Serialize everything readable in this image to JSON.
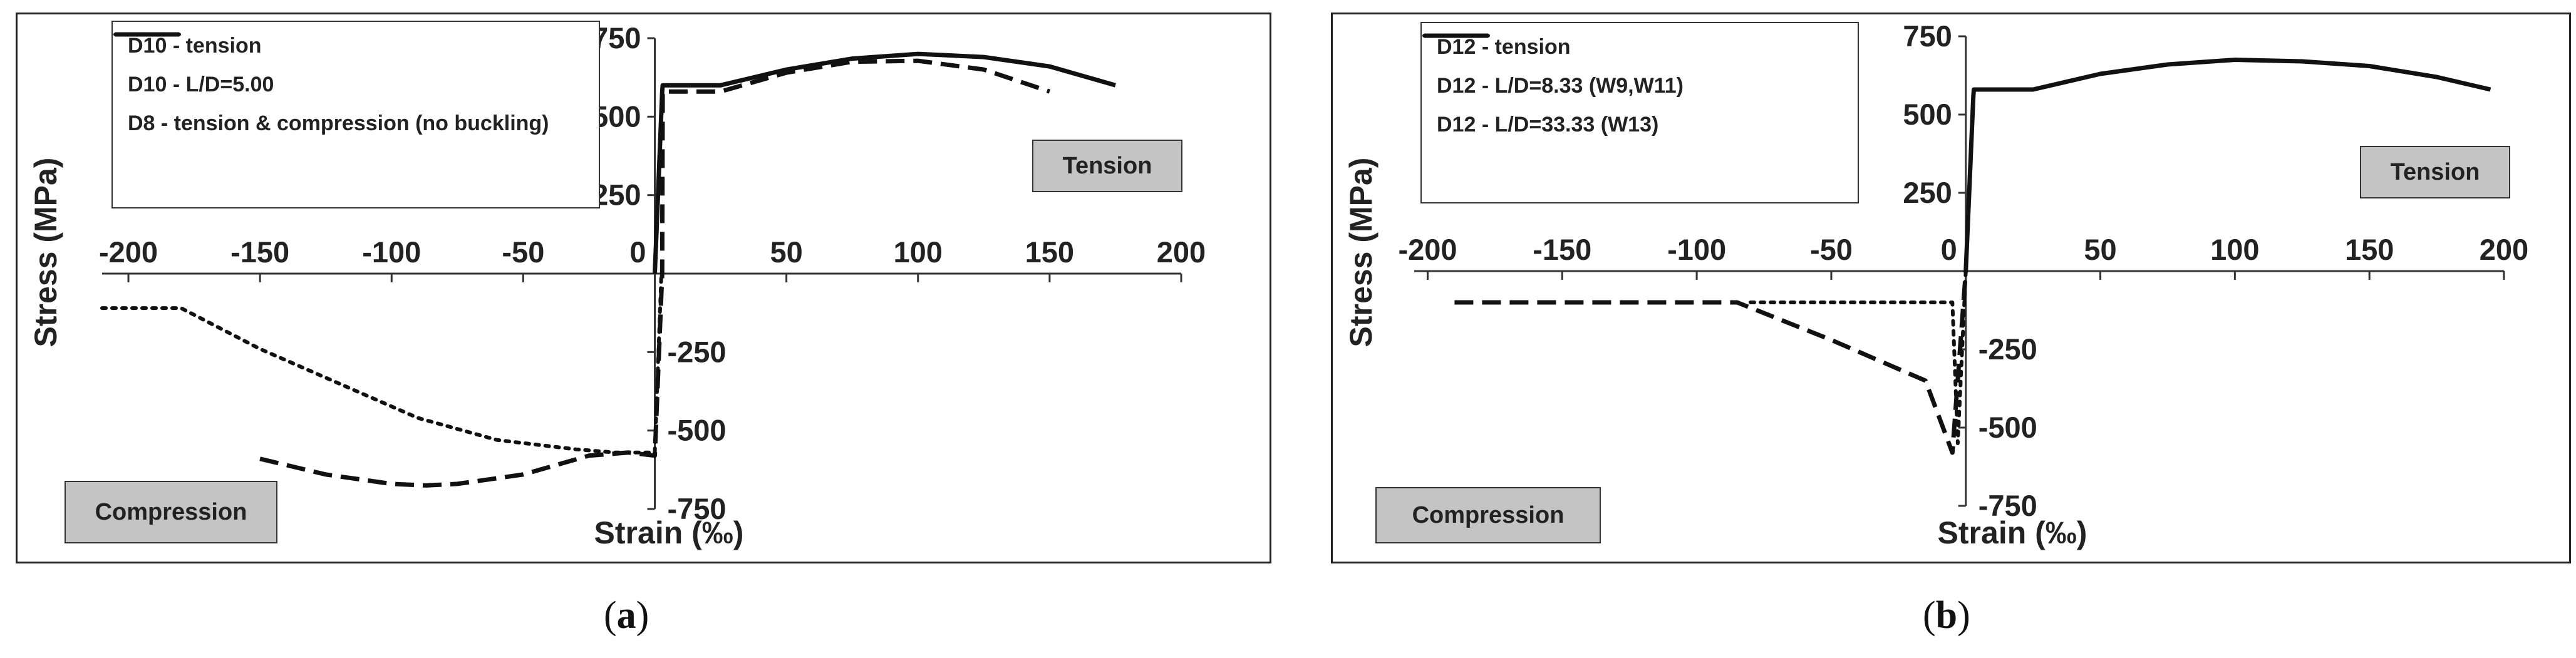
{
  "chart_data": [
    {
      "panel": "a",
      "type": "line",
      "xlabel": "Strain (‰)",
      "ylabel": "Stress (MPa)",
      "xlim": [
        -210,
        200
      ],
      "ylim": [
        -750,
        750
      ],
      "xticks": [
        -200,
        -150,
        -100,
        -50,
        0,
        50,
        100,
        150,
        200
      ],
      "yticks": [
        750,
        500,
        250,
        -250,
        -500,
        -750
      ],
      "legend_placement": "top-left",
      "grid": false,
      "region_labels": {
        "tension": "Tension",
        "compression": "Compression"
      },
      "caption": "a",
      "series": [
        {
          "name": "D10 - tension",
          "style": "solid",
          "x": [
            0,
            2.8,
            3,
            25,
            50,
            75,
            100,
            125,
            150,
            175
          ],
          "y": [
            0,
            580,
            600,
            600,
            650,
            685,
            700,
            690,
            660,
            600
          ]
        },
        {
          "name": "D10 - L/D=5.00",
          "style": "dotted",
          "x": [
            -210,
            -180,
            -150,
            -120,
            -90,
            -60,
            -30,
            -15,
            0,
            2.5
          ],
          "y": [
            -110,
            -110,
            -240,
            -350,
            -460,
            -530,
            -560,
            -570,
            -570,
            0
          ]
        },
        {
          "name": "D8 - tension & compression (no buckling)",
          "style": "dashed",
          "x": [
            -150,
            -125,
            -100,
            -87,
            -75,
            -50,
            -25,
            -10,
            0,
            2.8,
            3,
            25,
            50,
            75,
            100,
            125,
            150
          ],
          "y": [
            -590,
            -640,
            -670,
            -675,
            -670,
            -640,
            -580,
            -570,
            -580,
            0,
            580,
            580,
            640,
            675,
            678,
            650,
            580
          ]
        }
      ]
    },
    {
      "panel": "b",
      "type": "line",
      "xlabel": "Strain (‰)",
      "ylabel": "Stress (MPa)",
      "xlim": [
        -205,
        200
      ],
      "ylim": [
        -750,
        750
      ],
      "xticks": [
        -200,
        -150,
        -100,
        -50,
        0,
        50,
        100,
        150,
        200
      ],
      "yticks": [
        750,
        500,
        250,
        -250,
        -500,
        -750
      ],
      "legend_placement": "top-left",
      "grid": false,
      "region_labels": {
        "tension": "Tension",
        "compression": "Compression"
      },
      "caption": "b",
      "series": [
        {
          "name": "D12 - tension",
          "style": "solid",
          "x": [
            0,
            2.8,
            3,
            25,
            50,
            75,
            100,
            125,
            150,
            175,
            195
          ],
          "y": [
            0,
            560,
            580,
            580,
            630,
            660,
            675,
            670,
            655,
            620,
            580
          ]
        },
        {
          "name": "D12 - L/D=8.33 (W9,W11)",
          "style": "dashed",
          "x": [
            -190,
            -85,
            -50,
            -15,
            -5,
            0
          ],
          "y": [
            -100,
            -100,
            -220,
            -350,
            -580,
            0
          ]
        },
        {
          "name": "D12 - L/D=33.33 (W13)",
          "style": "dotted",
          "x": [
            -80,
            -5,
            -3,
            0
          ],
          "y": [
            -100,
            -100,
            -550,
            0
          ]
        }
      ]
    }
  ]
}
